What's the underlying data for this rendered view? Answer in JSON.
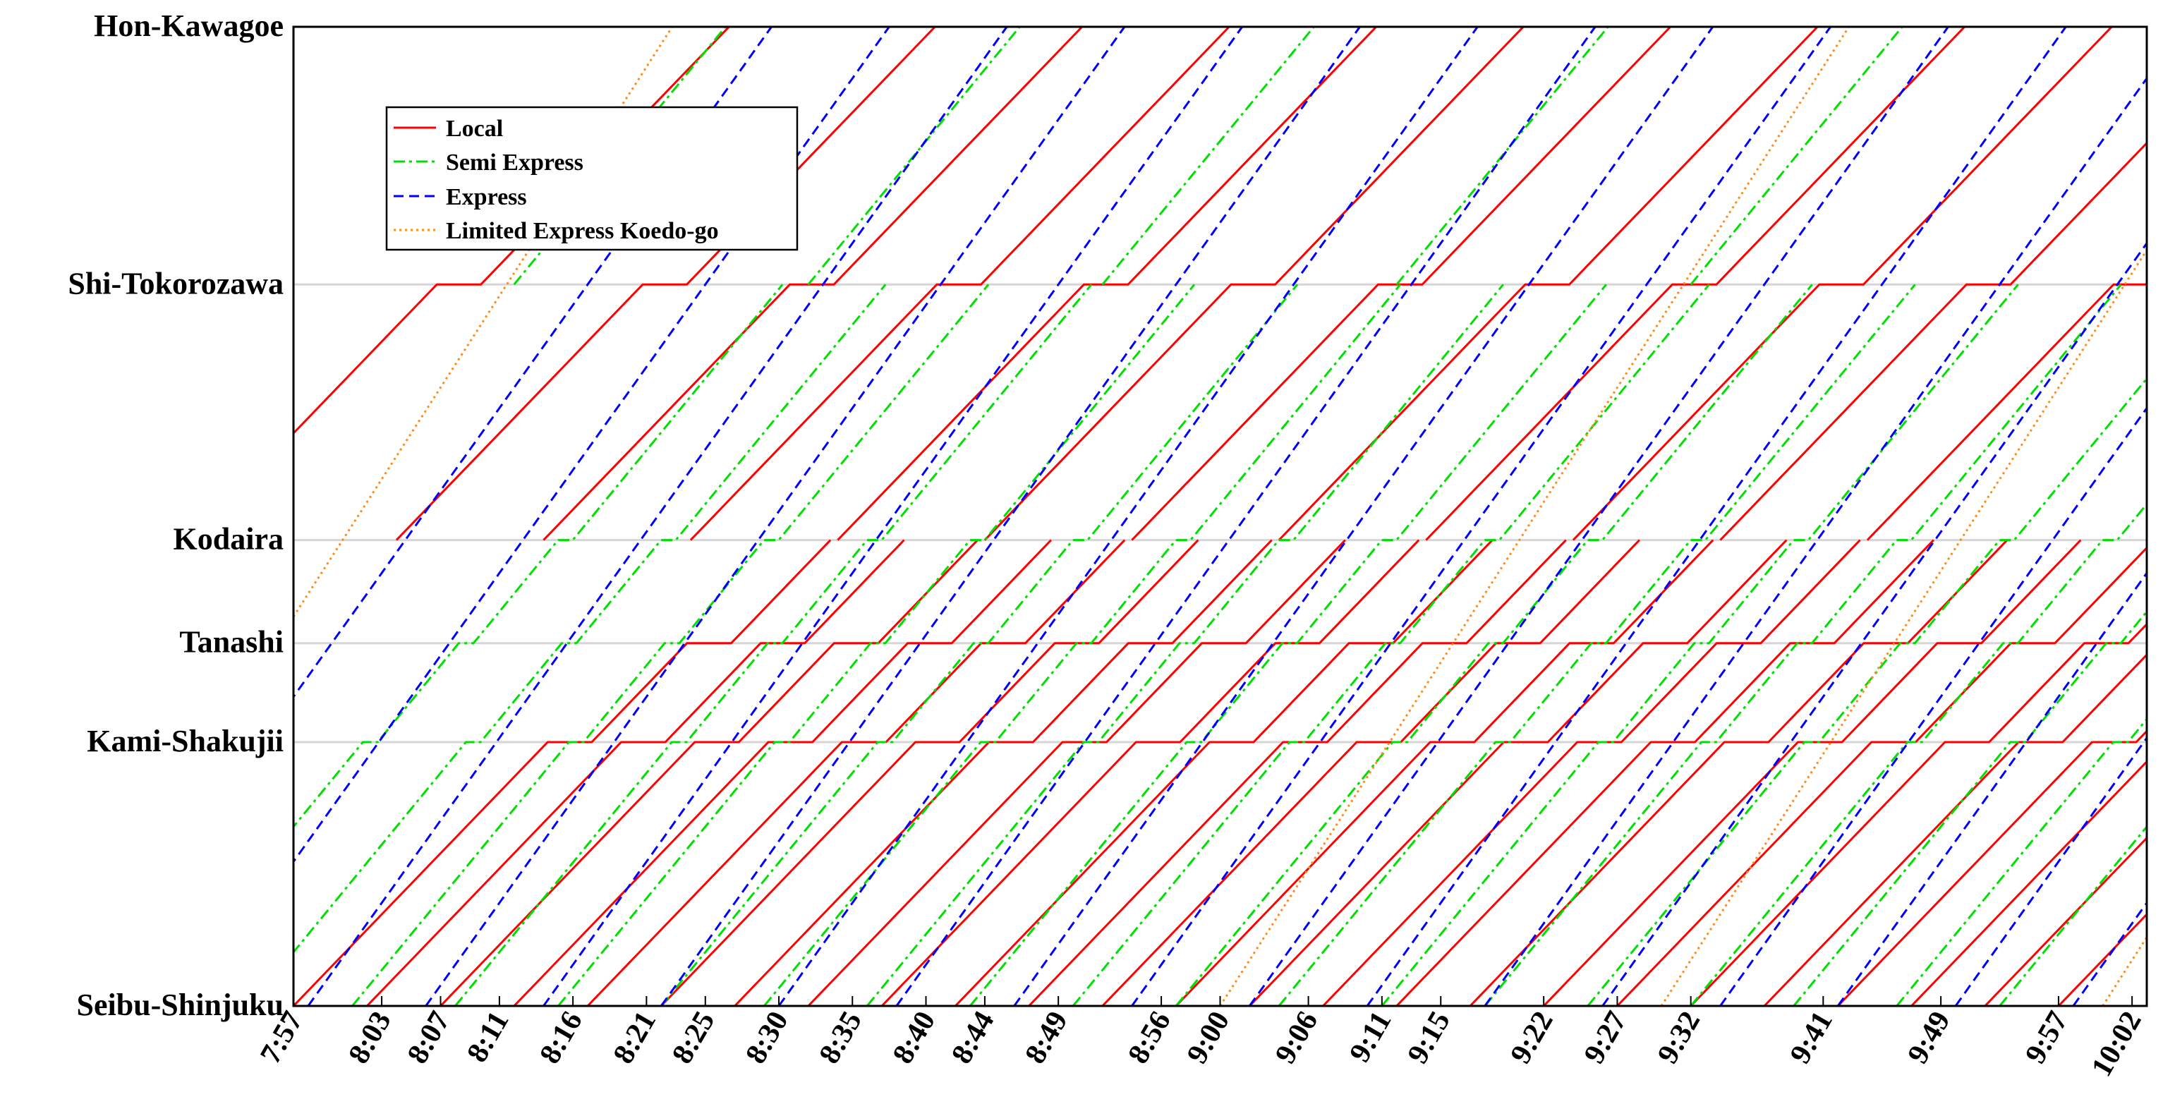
{
  "chart_data": {
    "type": "line",
    "title": "",
    "xlabel": "",
    "ylabel": "",
    "x_unit": "clock time (minutes after midnight)",
    "xlim": [
      477,
      603
    ],
    "x_ticks": [
      {
        "value": 477,
        "label": "7:57"
      },
      {
        "value": 483,
        "label": "8:03"
      },
      {
        "value": 487,
        "label": "8:07"
      },
      {
        "value": 491,
        "label": "8:11"
      },
      {
        "value": 496,
        "label": "8:16"
      },
      {
        "value": 501,
        "label": "8:21"
      },
      {
        "value": 505,
        "label": "8:25"
      },
      {
        "value": 510,
        "label": "8:30"
      },
      {
        "value": 515,
        "label": "8:35"
      },
      {
        "value": 520,
        "label": "8:40"
      },
      {
        "value": 524,
        "label": "8:44"
      },
      {
        "value": 529,
        "label": "8:49"
      },
      {
        "value": 536,
        "label": "8:56"
      },
      {
        "value": 540,
        "label": "9:00"
      },
      {
        "value": 546,
        "label": "9:06"
      },
      {
        "value": 551,
        "label": "9:11"
      },
      {
        "value": 555,
        "label": "9:15"
      },
      {
        "value": 562,
        "label": "9:22"
      },
      {
        "value": 567,
        "label": "9:27"
      },
      {
        "value": 572,
        "label": "9:32"
      },
      {
        "value": 581,
        "label": "9:41"
      },
      {
        "value": 589,
        "label": "9:49"
      },
      {
        "value": 597,
        "label": "9:57"
      },
      {
        "value": 602,
        "label": "10:02"
      }
    ],
    "stations": [
      {
        "name": "Seibu-Shinjuku",
        "km": 0
      },
      {
        "name": "Kami-Shakujii",
        "km": 12.8
      },
      {
        "name": "Tanashi",
        "km": 17.6
      },
      {
        "name": "Kodaira",
        "km": 22.6
      },
      {
        "name": "Shi-Tokorozawa",
        "km": 35.0
      },
      {
        "name": "Hon-Kawagoe",
        "km": 47.5
      }
    ],
    "ylim": [
      0,
      47.5
    ],
    "grid": "horizontal lines at stations",
    "legend_position": "top-left",
    "series": [
      {
        "name": "Local",
        "color": "#ff0000",
        "dash": "solid",
        "trains": [
          {
            "from": 0,
            "to": 22.6,
            "dep": 477
          },
          {
            "from": 0,
            "to": 22.6,
            "dep": 482
          },
          {
            "from": 0,
            "to": 22.6,
            "dep": 487
          },
          {
            "from": 0,
            "to": 22.6,
            "dep": 492
          },
          {
            "from": 0,
            "to": 22.6,
            "dep": 497
          },
          {
            "from": 0,
            "to": 22.6,
            "dep": 502
          },
          {
            "from": 0,
            "to": 22.6,
            "dep": 507
          },
          {
            "from": 0,
            "to": 22.6,
            "dep": 512
          },
          {
            "from": 0,
            "to": 22.6,
            "dep": 517
          },
          {
            "from": 0,
            "to": 22.6,
            "dep": 522
          },
          {
            "from": 0,
            "to": 22.6,
            "dep": 527
          },
          {
            "from": 0,
            "to": 22.6,
            "dep": 532
          },
          {
            "from": 0,
            "to": 22.6,
            "dep": 537
          },
          {
            "from": 0,
            "to": 22.6,
            "dep": 542
          },
          {
            "from": 0,
            "to": 22.6,
            "dep": 547
          },
          {
            "from": 0,
            "to": 22.6,
            "dep": 552
          },
          {
            "from": 0,
            "to": 22.6,
            "dep": 557
          },
          {
            "from": 0,
            "to": 22.6,
            "dep": 562
          },
          {
            "from": 0,
            "to": 22.6,
            "dep": 567
          },
          {
            "from": 0,
            "to": 22.6,
            "dep": 572
          },
          {
            "from": 0,
            "to": 22.6,
            "dep": 577
          },
          {
            "from": 0,
            "to": 22.6,
            "dep": 582
          },
          {
            "from": 0,
            "to": 22.6,
            "dep": 587
          },
          {
            "from": 0,
            "to": 22.6,
            "dep": 592
          },
          {
            "from": 0,
            "to": 22.6,
            "dep": 597
          },
          {
            "from": 22.6,
            "to": 47.5,
            "dep": 470
          },
          {
            "from": 22.6,
            "to": 47.5,
            "dep": 484
          },
          {
            "from": 22.6,
            "to": 47.5,
            "dep": 494
          },
          {
            "from": 22.6,
            "to": 47.5,
            "dep": 504
          },
          {
            "from": 22.6,
            "to": 47.5,
            "dep": 514
          },
          {
            "from": 22.6,
            "to": 47.5,
            "dep": 524
          },
          {
            "from": 22.6,
            "to": 47.5,
            "dep": 534
          },
          {
            "from": 22.6,
            "to": 47.5,
            "dep": 544
          },
          {
            "from": 22.6,
            "to": 47.5,
            "dep": 554
          },
          {
            "from": 22.6,
            "to": 47.5,
            "dep": 564
          },
          {
            "from": 22.6,
            "to": 47.5,
            "dep": 574
          },
          {
            "from": 22.6,
            "to": 47.5,
            "dep": 584
          }
        ]
      },
      {
        "name": "Semi Express",
        "color": "#00e000",
        "dash": "dashdot",
        "trains": [
          {
            "from": 0,
            "to": 35.0,
            "dep": 467
          },
          {
            "from": 0,
            "to": 35.0,
            "dep": 474
          },
          {
            "from": 0,
            "to": 35.0,
            "dep": 481
          },
          {
            "from": 0,
            "to": 35.0,
            "dep": 488
          },
          {
            "from": 0,
            "to": 35.0,
            "dep": 495
          },
          {
            "from": 0,
            "to": 35.0,
            "dep": 502
          },
          {
            "from": 0,
            "to": 35.0,
            "dep": 509
          },
          {
            "from": 0,
            "to": 35.0,
            "dep": 516
          },
          {
            "from": 0,
            "to": 35.0,
            "dep": 523
          },
          {
            "from": 0,
            "to": 35.0,
            "dep": 530
          },
          {
            "from": 0,
            "to": 35.0,
            "dep": 537
          },
          {
            "from": 0,
            "to": 35.0,
            "dep": 544
          },
          {
            "from": 0,
            "to": 35.0,
            "dep": 551
          },
          {
            "from": 0,
            "to": 35.0,
            "dep": 558
          },
          {
            "from": 0,
            "to": 35.0,
            "dep": 565
          },
          {
            "from": 0,
            "to": 35.0,
            "dep": 572
          },
          {
            "from": 0,
            "to": 35.0,
            "dep": 579
          },
          {
            "from": 0,
            "to": 35.0,
            "dep": 586
          },
          {
            "from": 0,
            "to": 35.0,
            "dep": 593
          },
          {
            "from": 35.0,
            "to": 47.5,
            "dep": 492
          },
          {
            "from": 35.0,
            "to": 47.5,
            "dep": 512
          },
          {
            "from": 35.0,
            "to": 47.5,
            "dep": 532
          },
          {
            "from": 35.0,
            "to": 47.5,
            "dep": 552
          },
          {
            "from": 35.0,
            "to": 47.5,
            "dep": 572
          }
        ]
      },
      {
        "name": "Express",
        "color": "#0000ff",
        "dash": "dashed",
        "trains": [
          {
            "from": 0,
            "to": 47.5,
            "dep": 462
          },
          {
            "from": 0,
            "to": 47.5,
            "dep": 470
          },
          {
            "from": 0,
            "to": 47.5,
            "dep": 478
          },
          {
            "from": 0,
            "to": 47.5,
            "dep": 486
          },
          {
            "from": 0,
            "to": 47.5,
            "dep": 494
          },
          {
            "from": 0,
            "to": 47.5,
            "dep": 502
          },
          {
            "from": 0,
            "to": 47.5,
            "dep": 510
          },
          {
            "from": 0,
            "to": 47.5,
            "dep": 518
          },
          {
            "from": 0,
            "to": 47.5,
            "dep": 526
          },
          {
            "from": 0,
            "to": 47.5,
            "dep": 534
          },
          {
            "from": 0,
            "to": 47.5,
            "dep": 542
          },
          {
            "from": 0,
            "to": 47.5,
            "dep": 550
          },
          {
            "from": 0,
            "to": 47.5,
            "dep": 558
          },
          {
            "from": 0,
            "to": 47.5,
            "dep": 566
          },
          {
            "from": 0,
            "to": 47.5,
            "dep": 574
          },
          {
            "from": 0,
            "to": 47.5,
            "dep": 582
          },
          {
            "from": 0,
            "to": 47.5,
            "dep": 590
          },
          {
            "from": 0,
            "to": 47.5,
            "dep": 598
          }
        ]
      },
      {
        "name": "Limited Express Koedo-go",
        "color": "#ff8c1a",
        "dash": "dotted",
        "trains": [
          {
            "from": 0,
            "to": 47.5,
            "dep": 460
          },
          {
            "from": 0,
            "to": 47.5,
            "dep": 540
          },
          {
            "from": 0,
            "to": 47.5,
            "dep": 570
          },
          {
            "from": 0,
            "to": 47.5,
            "dep": 600
          }
        ]
      }
    ]
  }
}
